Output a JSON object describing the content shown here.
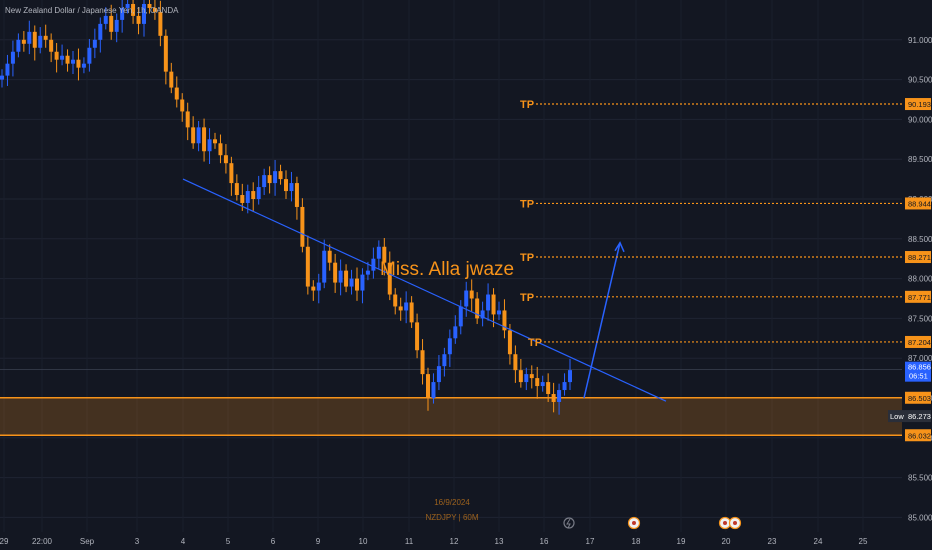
{
  "title": "New Zealand Dollar / Japanese Yen, 1h, OANDA",
  "author_label": "Miss. Alla jwaze",
  "footer": {
    "date": "16/9/2024",
    "symbol": "NZDJPY | 60M"
  },
  "chart_data": {
    "type": "candlestick",
    "symbol": "NZDJPY",
    "timeframe": "1h",
    "y_ticks": [
      "91.000",
      "90.500",
      "90.000",
      "89.500",
      "89.000",
      "88.500",
      "88.000",
      "87.500",
      "87.000",
      "86.500",
      "86.000",
      "85.500",
      "85.000"
    ],
    "ylim": [
      84.95,
      91.5
    ],
    "x_ticks": [
      "29",
      "22:00",
      "Sep",
      "3",
      "4",
      "5",
      "6",
      "9",
      "10",
      "11",
      "12",
      "13",
      "16",
      "17",
      "18",
      "19",
      "20",
      "23",
      "24",
      "25"
    ],
    "closes": [
      90.55,
      90.7,
      90.85,
      91.0,
      90.95,
      91.1,
      90.9,
      91.05,
      91.0,
      90.85,
      90.75,
      90.8,
      90.7,
      90.75,
      90.65,
      90.7,
      90.9,
      91.0,
      91.2,
      91.3,
      91.1,
      91.25,
      91.4,
      91.45,
      91.3,
      91.2,
      91.45,
      91.4,
      91.35,
      91.05,
      90.6,
      90.4,
      90.25,
      90.1,
      89.9,
      89.7,
      89.9,
      89.6,
      89.75,
      89.7,
      89.55,
      89.45,
      89.2,
      89.05,
      88.95,
      89.1,
      89.0,
      89.15,
      89.3,
      89.2,
      89.35,
      89.25,
      89.1,
      89.2,
      88.9,
      88.4,
      87.9,
      87.85,
      87.95,
      88.35,
      88.2,
      87.95,
      88.1,
      87.9,
      88.0,
      87.85,
      88.05,
      88.1,
      88.25,
      88.4,
      88.2,
      87.8,
      87.65,
      87.6,
      87.7,
      87.45,
      87.1,
      86.8,
      86.5,
      86.7,
      86.9,
      87.05,
      87.25,
      87.4,
      87.65,
      87.85,
      87.75,
      87.5,
      87.6,
      87.8,
      87.55,
      87.6,
      87.35,
      87.05,
      86.85,
      86.7,
      86.8,
      86.75,
      86.65,
      86.7,
      86.55,
      86.45,
      86.6,
      86.7,
      86.85
    ],
    "last_price": "86.856",
    "countdown": "06:51",
    "low_price": "86.273",
    "support_zone": {
      "top": 86.503,
      "bottom": 86.032
    },
    "trendline": {
      "from": 89.25,
      "to": 86.46
    },
    "tp_levels": [
      {
        "label": "TP",
        "price": "90.193"
      },
      {
        "label": "TP",
        "price": "88.944"
      },
      {
        "label": "TP",
        "price": "88.271"
      },
      {
        "label": "TP",
        "price": "87.771"
      },
      {
        "label": "TP",
        "price": "87.204"
      }
    ],
    "projection": {
      "from_price": 86.5,
      "to_price": 88.45
    },
    "low_label": "Low",
    "colors": {
      "up": "#2962ff",
      "down": "#f7931a",
      "tp": "#f7931a",
      "trend": "#2962ff",
      "zone": "#f7931a",
      "price_tag": "#2962ff"
    }
  }
}
